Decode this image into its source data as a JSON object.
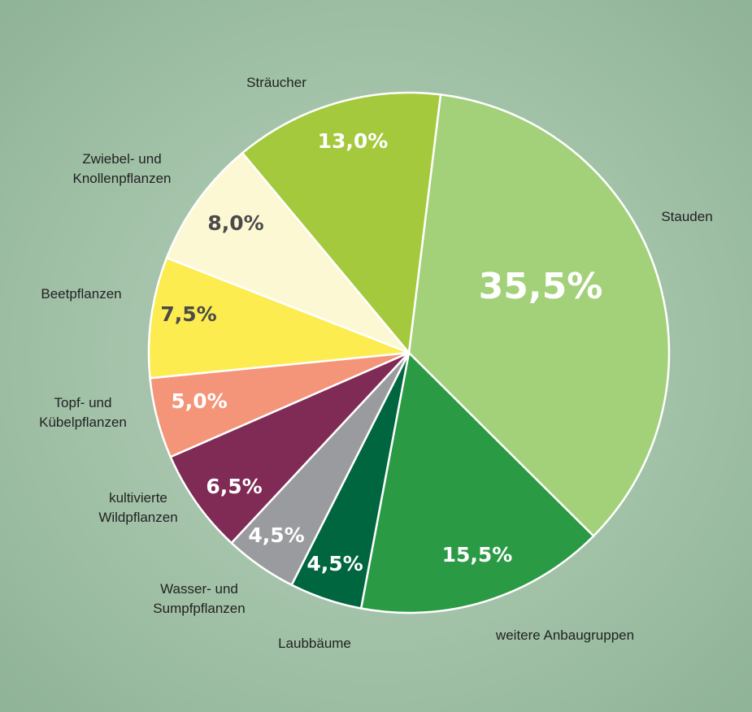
{
  "chart_data": {
    "type": "pie",
    "categories": [
      "Stauden",
      "weitere Anbaugruppen",
      "Laubbäume",
      "Wasser- und\nSumpfpflanzen",
      "kultivierte\nWildpflanzen",
      "Topf- und\nKübelpflanzen",
      "Beetpflanzen",
      "Zwiebel- und\nKnollenpflanzen",
      "Sträucher"
    ],
    "values": [
      35.5,
      15.5,
      4.5,
      4.5,
      6.5,
      5.0,
      7.5,
      8.0,
      13.0
    ],
    "value_labels": [
      "35,5%",
      "15,5%",
      "4,5%",
      "4,5%",
      "6,5%",
      "5,0%",
      "7,5%",
      "8,0%",
      "13,0%"
    ],
    "colors": [
      "#a3d17a",
      "#2a9a44",
      "#006640",
      "#9a9b9e",
      "#7f2b55",
      "#f4957a",
      "#fcec4f",
      "#fdf8d4",
      "#a5c93c"
    ]
  }
}
